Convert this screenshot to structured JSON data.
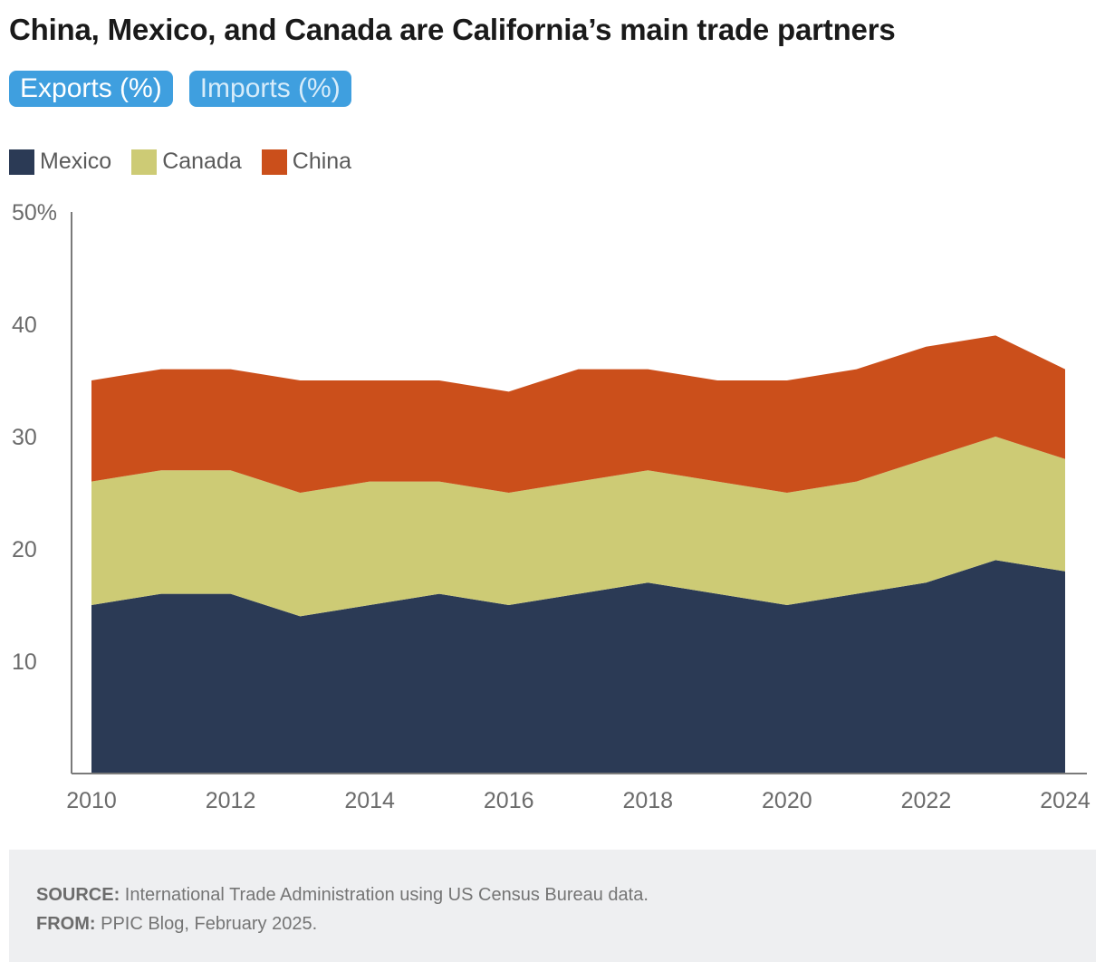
{
  "title": "China, Mexico, and Canada are California’s main trade partners",
  "tabs": [
    {
      "label": "Exports (%)",
      "active": true
    },
    {
      "label": "Imports (%)",
      "active": false
    }
  ],
  "legend": [
    {
      "label": "Mexico",
      "color": "#2b3a55"
    },
    {
      "label": "Canada",
      "color": "#cdcb75"
    },
    {
      "label": "China",
      "color": "#cb4f1b"
    }
  ],
  "chart_data": {
    "type": "area",
    "stacked": true,
    "title": "China, Mexico, and Canada are California’s main trade partners",
    "x": [
      2010,
      2011,
      2012,
      2013,
      2014,
      2015,
      2016,
      2017,
      2018,
      2019,
      2020,
      2021,
      2022,
      2023,
      2024
    ],
    "series": [
      {
        "name": "Mexico",
        "color": "#2b3a55",
        "values": [
          15,
          16,
          16,
          14,
          15,
          16,
          15,
          16,
          17,
          16,
          15,
          16,
          17,
          19,
          18
        ]
      },
      {
        "name": "Canada",
        "color": "#cdcb75",
        "values": [
          11,
          11,
          11,
          11,
          11,
          10,
          10,
          10,
          10,
          10,
          10,
          10,
          11,
          11,
          10
        ]
      },
      {
        "name": "China",
        "color": "#cb4f1b",
        "values": [
          9,
          9,
          9,
          10,
          9,
          9,
          9,
          10,
          9,
          9,
          10,
          10,
          10,
          9,
          8
        ]
      }
    ],
    "xticks": [
      "2010",
      "2012",
      "2014",
      "2016",
      "2018",
      "2020",
      "2022",
      "2024"
    ],
    "yticks": [
      "10",
      "20",
      "30",
      "40",
      "50%"
    ],
    "ylim": [
      0,
      50
    ],
    "xlim": [
      2010,
      2024
    ],
    "grid": false,
    "legend_position": "top-left"
  },
  "footer": {
    "source_label": "SOURCE:",
    "source_text": "International Trade Administration using US Census Bureau data.",
    "from_label": "FROM:",
    "from_text": "PPIC Blog, February 2025."
  }
}
